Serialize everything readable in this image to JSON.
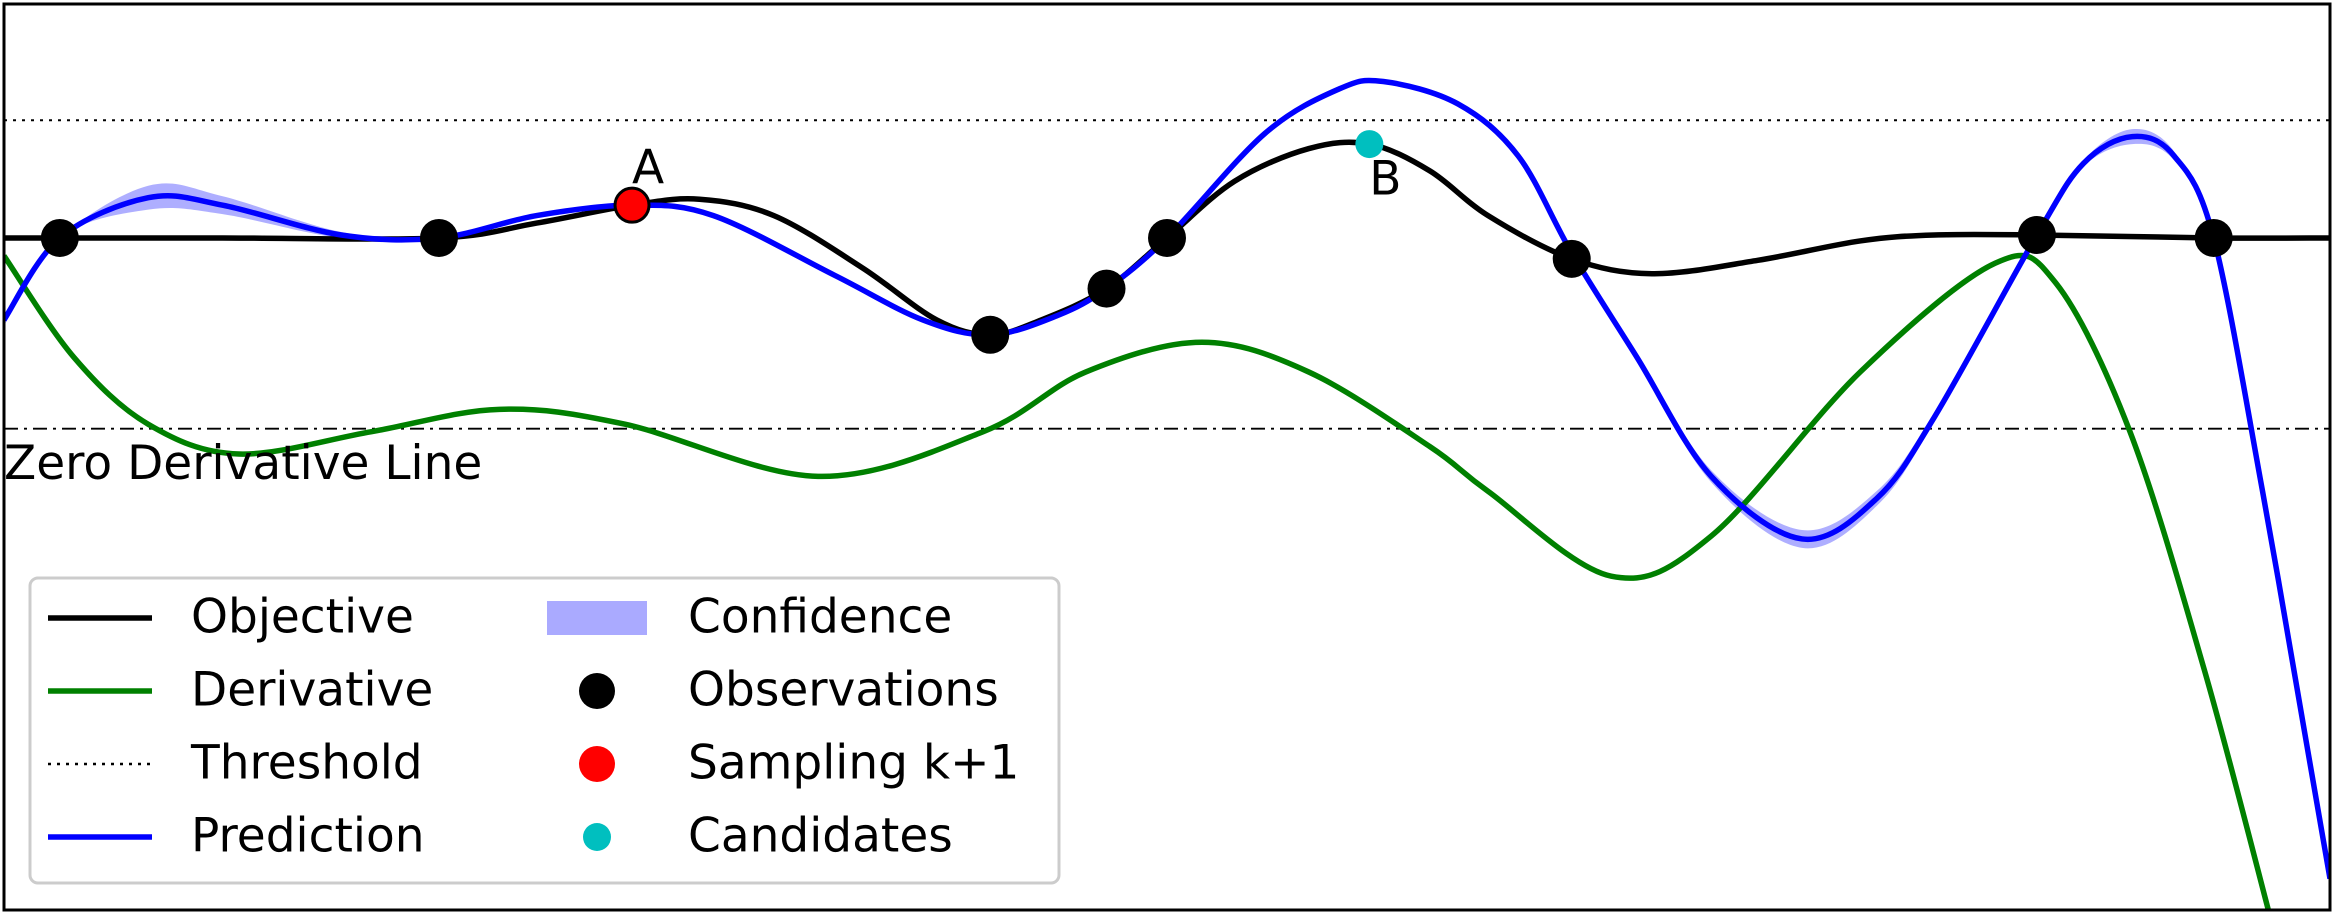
{
  "chart_data": {
    "type": "line",
    "xlim": [
      0,
      10
    ],
    "ylim": [
      -3.23,
      2.85
    ],
    "series": [
      {
        "name": "Objective",
        "type": "line",
        "color": "#000000",
        "linestyle": "solid",
        "x": [
          0,
          0.24,
          0.94,
          1.87,
          2.29,
          2.7,
          2.99,
          3.31,
          3.69,
          4.01,
          4.24,
          4.46,
          4.74,
          5.0,
          5.29,
          5.61,
          5.87,
          6.13,
          6.38,
          6.74,
          7.09,
          7.54,
          7.98,
          8.3,
          8.74,
          9.5,
          10
        ],
        "values": [
          1.28,
          1.28,
          1.28,
          1.28,
          1.38,
          1.5,
          1.54,
          1.43,
          1.08,
          0.73,
          0.63,
          0.73,
          0.94,
          1.28,
          1.66,
          1.88,
          1.91,
          1.73,
          1.43,
          1.14,
          1.04,
          1.13,
          1.26,
          1.3,
          1.3,
          1.28,
          1.28
        ]
      },
      {
        "name": "Derivative",
        "type": "line",
        "color": "#008000",
        "linestyle": "solid",
        "x": [
          0,
          0.3,
          0.62,
          1.01,
          1.58,
          2.13,
          2.67,
          3.5,
          4.21,
          4.65,
          5.15,
          5.61,
          6.13,
          6.38,
          6.91,
          7.34,
          7.98,
          8.56,
          8.82,
          9.14,
          9.46,
          9.74
        ],
        "values": [
          1.16,
          0.48,
          0.03,
          -0.17,
          -0.02,
          0.13,
          0.03,
          -0.32,
          -0.02,
          0.38,
          0.58,
          0.38,
          -0.12,
          -0.42,
          -0.99,
          -0.72,
          0.38,
          1.11,
          0.98,
          -0.02,
          -1.62,
          -3.26
        ]
      },
      {
        "name": "Threshold",
        "type": "hline",
        "color": "#000000",
        "linestyle": "dotted",
        "y": 2.07
      },
      {
        "name": "Prediction",
        "type": "line",
        "color": "#0000ff",
        "linestyle": "solid",
        "x": [
          0,
          0.24,
          0.62,
          0.94,
          1.45,
          1.87,
          2.29,
          2.7,
          3.05,
          3.57,
          3.95,
          4.24,
          4.53,
          4.74,
          5.0,
          5.42,
          5.74,
          5.93,
          6.25,
          6.51,
          6.74,
          7.02,
          7.34,
          7.73,
          8.05,
          8.3,
          8.74,
          8.94,
          9.15,
          9.33,
          9.5,
          9.71,
          9.9,
          10
        ],
        "values": [
          0.73,
          1.28,
          1.55,
          1.5,
          1.3,
          1.28,
          1.43,
          1.5,
          1.43,
          1.03,
          0.73,
          0.63,
          0.76,
          0.94,
          1.28,
          1.98,
          2.28,
          2.33,
          2.18,
          1.83,
          1.18,
          0.48,
          -0.32,
          -0.74,
          -0.47,
          0.08,
          1.3,
          1.78,
          1.96,
          1.83,
          1.28,
          -0.42,
          -2.12,
          -3.02
        ]
      },
      {
        "name": "Confidence",
        "type": "band",
        "color": "#aaaaff",
        "x": [
          0,
          0.24,
          0.62,
          0.94,
          1.45,
          1.87,
          2.29,
          2.7,
          3.05,
          3.57,
          3.95,
          4.24,
          4.53,
          4.74,
          5.0,
          5.42,
          5.74,
          5.93,
          6.25,
          6.51,
          6.74,
          7.02,
          7.34,
          7.73,
          8.05,
          8.3,
          8.74,
          8.94,
          9.15,
          9.33,
          9.5,
          9.71,
          9.9,
          10
        ],
        "lower": [
          0.69,
          1.28,
          1.47,
          1.44,
          1.28,
          1.28,
          1.42,
          1.5,
          1.42,
          1.02,
          0.72,
          0.63,
          0.76,
          0.94,
          1.28,
          1.97,
          2.27,
          2.32,
          2.17,
          1.82,
          1.18,
          0.46,
          -0.36,
          -0.8,
          -0.52,
          0.05,
          1.3,
          1.76,
          1.91,
          1.8,
          1.28,
          -0.43,
          -2.13,
          -3.03
        ],
        "upper": [
          0.77,
          1.28,
          1.63,
          1.56,
          1.32,
          1.28,
          1.44,
          1.5,
          1.44,
          1.04,
          0.74,
          0.63,
          0.76,
          0.94,
          1.28,
          1.99,
          2.29,
          2.34,
          2.19,
          1.84,
          1.18,
          0.5,
          -0.28,
          -0.68,
          -0.42,
          0.11,
          1.3,
          1.8,
          2.01,
          1.86,
          1.28,
          -0.41,
          -2.11,
          -3.01
        ]
      },
      {
        "name": "Observations",
        "type": "scatter",
        "color": "#000000",
        "size": 19,
        "x": [
          0.24,
          1.87,
          4.24,
          4.74,
          5.0,
          6.74,
          8.74,
          9.5
        ],
        "values": [
          1.28,
          1.28,
          0.63,
          0.94,
          1.28,
          1.14,
          1.3,
          1.28
        ]
      },
      {
        "name": "Sampling k+1",
        "type": "scatter",
        "color": "#ff0000",
        "edgecolor": "#000000",
        "size": 17,
        "x": [
          2.7
        ],
        "values": [
          1.5
        ]
      },
      {
        "name": "Candidates",
        "type": "scatter",
        "color": "#00bfbf",
        "size": 14,
        "x": [
          5.87
        ],
        "values": [
          1.91
        ]
      }
    ],
    "reference_line": {
      "label": "Zero Derivative Line",
      "value": 0,
      "linestyle": "dashdot",
      "color": "#000000"
    },
    "annotations": [
      "A",
      "B"
    ],
    "legend": "lower left"
  }
}
